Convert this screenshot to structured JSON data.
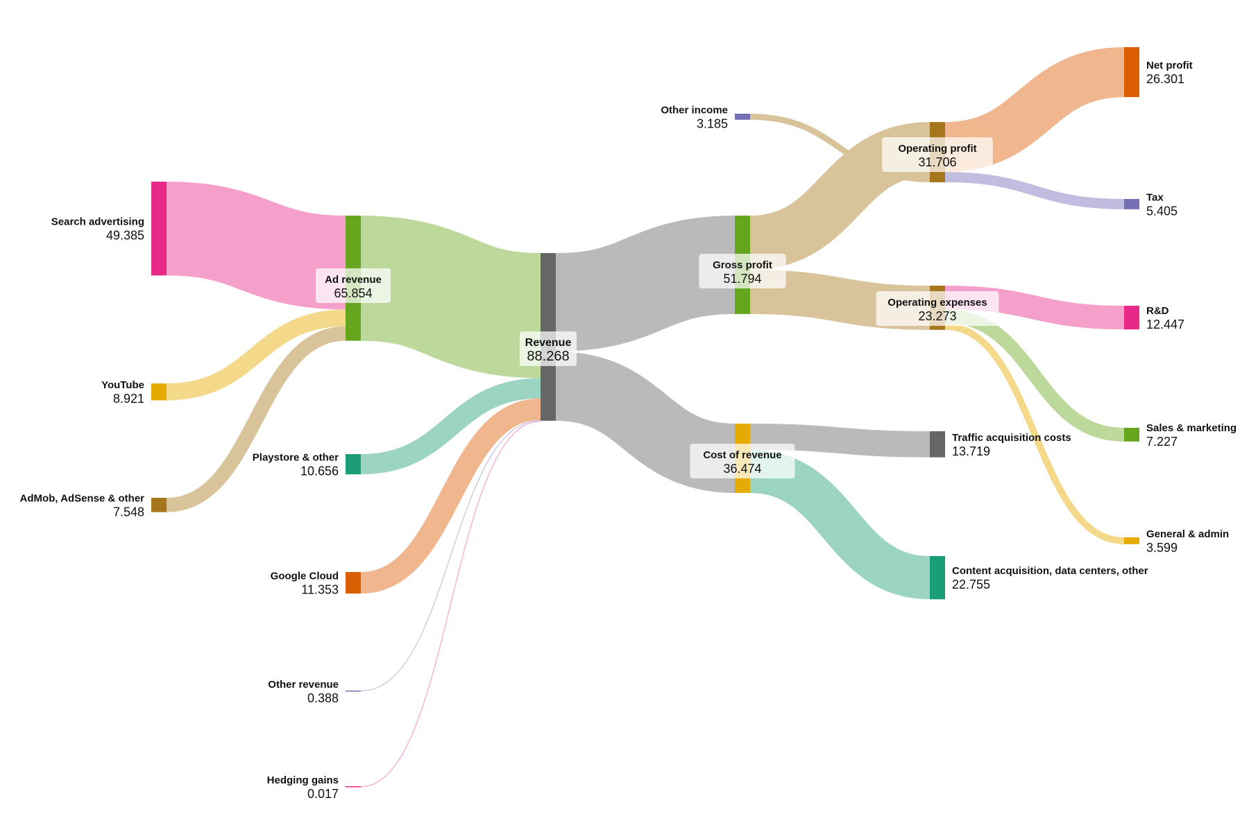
{
  "chart_data": {
    "type": "sankey",
    "nodes": [
      {
        "id": "search",
        "name": "Search advertising",
        "value": "49.385",
        "color": "#e7298a"
      },
      {
        "id": "youtube",
        "name": "YouTube",
        "value": "8.921",
        "color": "#e6ab02"
      },
      {
        "id": "admob",
        "name": "AdMob, AdSense & other",
        "value": "7.548",
        "color": "#a6761d"
      },
      {
        "id": "playstore",
        "name": "Playstore & other",
        "value": "10.656",
        "color": "#1b9e77"
      },
      {
        "id": "cloud",
        "name": "Google Cloud",
        "value": "11.353",
        "color": "#d95f02"
      },
      {
        "id": "otherrev",
        "name": "Other revenue",
        "value": "0.388",
        "color": "#7570b3"
      },
      {
        "id": "hedging",
        "name": "Hedging gains",
        "value": "0.017",
        "color": "#e7298a"
      },
      {
        "id": "adrev",
        "name": "Ad revenue",
        "value": "65.854",
        "color": "#66a61e"
      },
      {
        "id": "revenue",
        "name": "Revenue",
        "value": "88.268",
        "color": "#666666"
      },
      {
        "id": "gross",
        "name": "Gross profit",
        "value": "51.794",
        "color": "#66a61e"
      },
      {
        "id": "cor",
        "name": "Cost of revenue",
        "value": "36.474",
        "color": "#e6ab02"
      },
      {
        "id": "otherinc",
        "name": "Other income",
        "value": "3.185",
        "color": "#7570b3"
      },
      {
        "id": "opprofit",
        "name": "Operating profit",
        "value": "31.706",
        "color": "#a6761d"
      },
      {
        "id": "opex",
        "name": "Operating expenses",
        "value": "23.273",
        "color": "#a6761d"
      },
      {
        "id": "tac",
        "name": "Traffic acquisition costs",
        "value": "13.719",
        "color": "#666666"
      },
      {
        "id": "content",
        "name": "Content acquisition, data centers, other",
        "value": "22.755",
        "color": "#1b9e77"
      },
      {
        "id": "net",
        "name": "Net profit",
        "value": "26.301",
        "color": "#d95f02"
      },
      {
        "id": "tax",
        "name": "Tax",
        "value": "5.405",
        "color": "#7570b3"
      },
      {
        "id": "rnd",
        "name": "R&D",
        "value": "12.447",
        "color": "#e7298a"
      },
      {
        "id": "sales",
        "name": "Sales & marketing",
        "value": "7.227",
        "color": "#66a61e"
      },
      {
        "id": "ga",
        "name": "General & admin",
        "value": "3.599",
        "color": "#e6ab02"
      }
    ],
    "links": [
      {
        "source": "search",
        "target": "adrev",
        "value": 49.385,
        "color": "#f4a0cb"
      },
      {
        "source": "youtube",
        "target": "adrev",
        "value": 8.921,
        "color": "#f4d98a"
      },
      {
        "source": "admob",
        "target": "adrev",
        "value": 7.548,
        "color": "#d9c39a"
      },
      {
        "source": "adrev",
        "target": "revenue",
        "value": 65.854,
        "color": "#bcd89a"
      },
      {
        "source": "playstore",
        "target": "revenue",
        "value": 10.656,
        "color": "#9bd4c1"
      },
      {
        "source": "cloud",
        "target": "revenue",
        "value": 11.353,
        "color": "#f0b68e"
      },
      {
        "source": "otherrev",
        "target": "revenue",
        "value": 0.388,
        "color": "#c0bde0"
      },
      {
        "source": "hedging",
        "target": "revenue",
        "value": 0.017,
        "color": "#f4a0cb"
      },
      {
        "source": "revenue",
        "target": "gross",
        "value": 51.794,
        "color": "#bababa"
      },
      {
        "source": "revenue",
        "target": "cor",
        "value": 36.474,
        "color": "#bababa"
      },
      {
        "source": "gross",
        "target": "opprofit",
        "value": 28.521,
        "color": "#d9c39a"
      },
      {
        "source": "gross",
        "target": "opex",
        "value": 23.273,
        "color": "#d9c39a"
      },
      {
        "source": "otherinc",
        "target": "opprofit",
        "value": 3.185,
        "color": "#d9c39a"
      },
      {
        "source": "cor",
        "target": "tac",
        "value": 13.719,
        "color": "#bababa"
      },
      {
        "source": "cor",
        "target": "content",
        "value": 22.755,
        "color": "#9bd4c1"
      },
      {
        "source": "opprofit",
        "target": "net",
        "value": 26.301,
        "color": "#f0b68e"
      },
      {
        "source": "opprofit",
        "target": "tax",
        "value": 5.405,
        "color": "#c0bde0"
      },
      {
        "source": "opex",
        "target": "rnd",
        "value": 12.447,
        "color": "#f4a0cb"
      },
      {
        "source": "opex",
        "target": "sales",
        "value": 7.227,
        "color": "#bcd89a"
      },
      {
        "source": "opex",
        "target": "ga",
        "value": 3.599,
        "color": "#f4d98a"
      }
    ]
  }
}
